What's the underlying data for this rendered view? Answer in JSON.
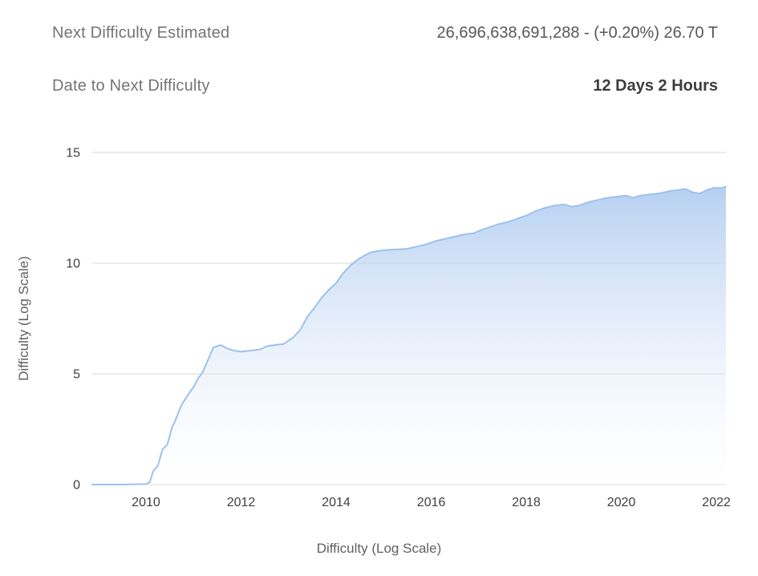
{
  "header": {
    "rows": [
      {
        "label": "Next Difficulty Estimated",
        "value": "26,696,638,691,288 - (+0.20%) 26.70 T"
      },
      {
        "label": "Date to Next Difficulty",
        "value": "12 Days 2 Hours"
      }
    ]
  },
  "chart_data": {
    "type": "area",
    "title": "",
    "xlabel": "Difficulty (Log Scale)",
    "ylabel": "Difficulty (Log Scale)",
    "x_ticks": [
      2010,
      2012,
      2014,
      2016,
      2018,
      2020,
      2022
    ],
    "y_ticks": [
      0,
      5,
      10,
      15
    ],
    "xlim": [
      2008.87,
      2022.2
    ],
    "ylim": [
      0,
      15
    ],
    "grid": true,
    "legend": "none",
    "colors": {
      "line": "#9dc1ed",
      "fill_top": "#a9c7ef",
      "fill_bottom": "#ffffff",
      "grid": "#d9d9d9",
      "tick": "#3f3f3f"
    },
    "series": [
      {
        "name": "Difficulty (Log Scale)",
        "points": [
          [
            2008.87,
            0
          ],
          [
            2009.5,
            0
          ],
          [
            2010.0,
            0.02
          ],
          [
            2010.08,
            0.1
          ],
          [
            2010.15,
            0.6
          ],
          [
            2010.25,
            0.85
          ],
          [
            2010.35,
            1.6
          ],
          [
            2010.45,
            1.8
          ],
          [
            2010.55,
            2.6
          ],
          [
            2010.6,
            2.8
          ],
          [
            2010.75,
            3.6
          ],
          [
            2010.9,
            4.1
          ],
          [
            2011.0,
            4.4
          ],
          [
            2011.1,
            4.8
          ],
          [
            2011.2,
            5.1
          ],
          [
            2011.3,
            5.6
          ],
          [
            2011.42,
            6.2
          ],
          [
            2011.5,
            6.25
          ],
          [
            2011.58,
            6.3
          ],
          [
            2011.7,
            6.15
          ],
          [
            2011.85,
            6.05
          ],
          [
            2012.0,
            6.0
          ],
          [
            2012.2,
            6.05
          ],
          [
            2012.4,
            6.1
          ],
          [
            2012.55,
            6.25
          ],
          [
            2012.7,
            6.3
          ],
          [
            2012.9,
            6.35
          ],
          [
            2013.0,
            6.5
          ],
          [
            2013.1,
            6.65
          ],
          [
            2013.25,
            7.0
          ],
          [
            2013.4,
            7.6
          ],
          [
            2013.55,
            8.0
          ],
          [
            2013.7,
            8.45
          ],
          [
            2013.85,
            8.8
          ],
          [
            2014.0,
            9.1
          ],
          [
            2014.15,
            9.55
          ],
          [
            2014.3,
            9.9
          ],
          [
            2014.45,
            10.15
          ],
          [
            2014.6,
            10.35
          ],
          [
            2014.75,
            10.5
          ],
          [
            2014.9,
            10.55
          ],
          [
            2015.1,
            10.6
          ],
          [
            2015.3,
            10.62
          ],
          [
            2015.5,
            10.65
          ],
          [
            2015.7,
            10.75
          ],
          [
            2015.9,
            10.85
          ],
          [
            2016.1,
            11.0
          ],
          [
            2016.3,
            11.1
          ],
          [
            2016.5,
            11.2
          ],
          [
            2016.7,
            11.3
          ],
          [
            2016.9,
            11.35
          ],
          [
            2017.0,
            11.45
          ],
          [
            2017.2,
            11.6
          ],
          [
            2017.4,
            11.75
          ],
          [
            2017.6,
            11.85
          ],
          [
            2017.8,
            12.0
          ],
          [
            2018.0,
            12.15
          ],
          [
            2018.2,
            12.35
          ],
          [
            2018.4,
            12.5
          ],
          [
            2018.6,
            12.6
          ],
          [
            2018.8,
            12.65
          ],
          [
            2018.95,
            12.55
          ],
          [
            2019.1,
            12.6
          ],
          [
            2019.3,
            12.75
          ],
          [
            2019.5,
            12.85
          ],
          [
            2019.7,
            12.95
          ],
          [
            2019.9,
            13.0
          ],
          [
            2020.1,
            13.05
          ],
          [
            2020.25,
            12.95
          ],
          [
            2020.4,
            13.05
          ],
          [
            2020.6,
            13.1
          ],
          [
            2020.8,
            13.15
          ],
          [
            2021.0,
            13.25
          ],
          [
            2021.2,
            13.3
          ],
          [
            2021.35,
            13.35
          ],
          [
            2021.5,
            13.2
          ],
          [
            2021.65,
            13.15
          ],
          [
            2021.8,
            13.3
          ],
          [
            2021.95,
            13.4
          ],
          [
            2022.1,
            13.4
          ],
          [
            2022.2,
            13.45
          ]
        ]
      }
    ]
  }
}
